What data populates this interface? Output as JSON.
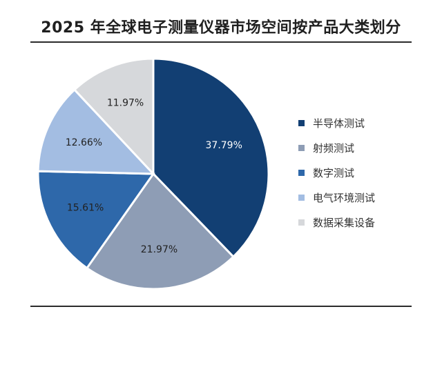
{
  "chart_data": {
    "type": "pie",
    "title": "2025 年全球电子测量仪器市场空间按产品大类划分",
    "categories": [
      "半导体测试",
      "射频测试",
      "数字测试",
      "电气环境测试",
      "数据采集设备"
    ],
    "values": [
      37.79,
      21.97,
      15.61,
      12.66,
      11.97
    ],
    "labels": [
      "37.79%",
      "21.97%",
      "15.61%",
      "12.66%",
      "11.97%"
    ],
    "colors": [
      "#123f73",
      "#8e9db5",
      "#2e68aa",
      "#a3bde2",
      "#d6d8db"
    ],
    "label_colors": [
      "#ffffff",
      "#222222",
      "#222222",
      "#222222",
      "#222222"
    ],
    "legend_position": "right",
    "start_angle": "top",
    "direction": "clockwise"
  }
}
